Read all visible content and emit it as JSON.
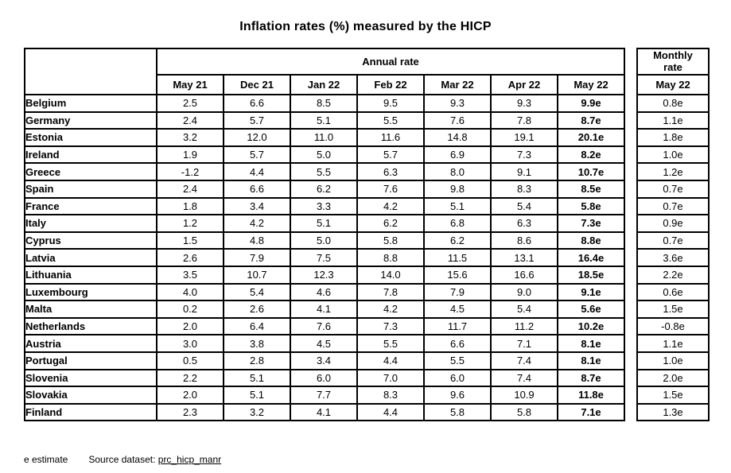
{
  "title": "Inflation rates (%) measured by the HICP",
  "chart_data": {
    "type": "table",
    "title": "Inflation rates (%) measured by the HICP",
    "annual": {
      "label": "Annual rate",
      "columns": [
        "May 21",
        "Dec 21",
        "Jan 22",
        "Feb 22",
        "Mar 22",
        "Apr 22",
        "May 22"
      ]
    },
    "monthly": {
      "label": "Monthly rate",
      "column": "May 22"
    },
    "rows": [
      {
        "country": "Belgium",
        "annual": [
          "2.5",
          "6.6",
          "8.5",
          "9.5",
          "9.3",
          "9.3",
          "9.9e"
        ],
        "monthly": "0.8e"
      },
      {
        "country": "Germany",
        "annual": [
          "2.4",
          "5.7",
          "5.1",
          "5.5",
          "7.6",
          "7.8",
          "8.7e"
        ],
        "monthly": "1.1e"
      },
      {
        "country": "Estonia",
        "annual": [
          "3.2",
          "12.0",
          "11.0",
          "11.6",
          "14.8",
          "19.1",
          "20.1e"
        ],
        "monthly": "1.8e"
      },
      {
        "country": "Ireland",
        "annual": [
          "1.9",
          "5.7",
          "5.0",
          "5.7",
          "6.9",
          "7.3",
          "8.2e"
        ],
        "monthly": "1.0e"
      },
      {
        "country": "Greece",
        "annual": [
          "-1.2",
          "4.4",
          "5.5",
          "6.3",
          "8.0",
          "9.1",
          "10.7e"
        ],
        "monthly": "1.2e"
      },
      {
        "country": "Spain",
        "annual": [
          "2.4",
          "6.6",
          "6.2",
          "7.6",
          "9.8",
          "8.3",
          "8.5e"
        ],
        "monthly": "0.7e"
      },
      {
        "country": "France",
        "annual": [
          "1.8",
          "3.4",
          "3.3",
          "4.2",
          "5.1",
          "5.4",
          "5.8e"
        ],
        "monthly": "0.7e"
      },
      {
        "country": "Italy",
        "annual": [
          "1.2",
          "4.2",
          "5.1",
          "6.2",
          "6.8",
          "6.3",
          "7.3e"
        ],
        "monthly": "0.9e"
      },
      {
        "country": "Cyprus",
        "annual": [
          "1.5",
          "4.8",
          "5.0",
          "5.8",
          "6.2",
          "8.6",
          "8.8e"
        ],
        "monthly": "0.7e"
      },
      {
        "country": "Latvia",
        "annual": [
          "2.6",
          "7.9",
          "7.5",
          "8.8",
          "11.5",
          "13.1",
          "16.4e"
        ],
        "monthly": "3.6e"
      },
      {
        "country": "Lithuania",
        "annual": [
          "3.5",
          "10.7",
          "12.3",
          "14.0",
          "15.6",
          "16.6",
          "18.5e"
        ],
        "monthly": "2.2e"
      },
      {
        "country": "Luxembourg",
        "annual": [
          "4.0",
          "5.4",
          "4.6",
          "7.8",
          "7.9",
          "9.0",
          "9.1e"
        ],
        "monthly": "0.6e"
      },
      {
        "country": "Malta",
        "annual": [
          "0.2",
          "2.6",
          "4.1",
          "4.2",
          "4.5",
          "5.4",
          "5.6e"
        ],
        "monthly": "1.5e"
      },
      {
        "country": "Netherlands",
        "annual": [
          "2.0",
          "6.4",
          "7.6",
          "7.3",
          "11.7",
          "11.2",
          "10.2e"
        ],
        "monthly": "-0.8e"
      },
      {
        "country": "Austria",
        "annual": [
          "3.0",
          "3.8",
          "4.5",
          "5.5",
          "6.6",
          "7.1",
          "8.1e"
        ],
        "monthly": "1.1e"
      },
      {
        "country": "Portugal",
        "annual": [
          "0.5",
          "2.8",
          "3.4",
          "4.4",
          "5.5",
          "7.4",
          "8.1e"
        ],
        "monthly": "1.0e"
      },
      {
        "country": "Slovenia",
        "annual": [
          "2.2",
          "5.1",
          "6.0",
          "7.0",
          "6.0",
          "7.4",
          "8.7e"
        ],
        "monthly": "2.0e"
      },
      {
        "country": "Slovakia",
        "annual": [
          "2.0",
          "5.1",
          "7.7",
          "8.3",
          "9.6",
          "10.9",
          "11.8e"
        ],
        "monthly": "1.5e"
      },
      {
        "country": "Finland",
        "annual": [
          "2.3",
          "3.2",
          "4.1",
          "4.4",
          "5.8",
          "5.8",
          "7.1e"
        ],
        "monthly": "1.3e"
      }
    ]
  },
  "footnote": {
    "estimate_note": "e estimate",
    "source_label": "Source dataset:",
    "source_link": "prc_hicp_manr"
  }
}
